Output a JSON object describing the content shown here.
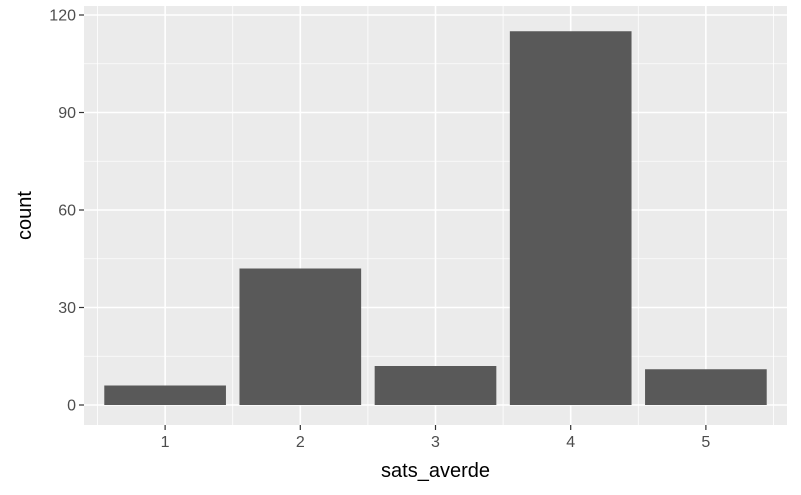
{
  "chart_data": {
    "type": "bar",
    "categories": [
      "1",
      "2",
      "3",
      "4",
      "5"
    ],
    "values": [
      6,
      42,
      12,
      115,
      11
    ],
    "title": "",
    "xlabel": "sats_averde",
    "ylabel": "count",
    "ylim": [
      -4,
      120
    ],
    "yticks": [
      0,
      30,
      60,
      90,
      120
    ],
    "grid": true,
    "colors": {
      "panel_bg": "#ebebeb",
      "grid_major": "#ffffff",
      "bar_fill": "#595959",
      "tick_mark": "#333333",
      "tick_text": "#4d4d4d"
    }
  }
}
